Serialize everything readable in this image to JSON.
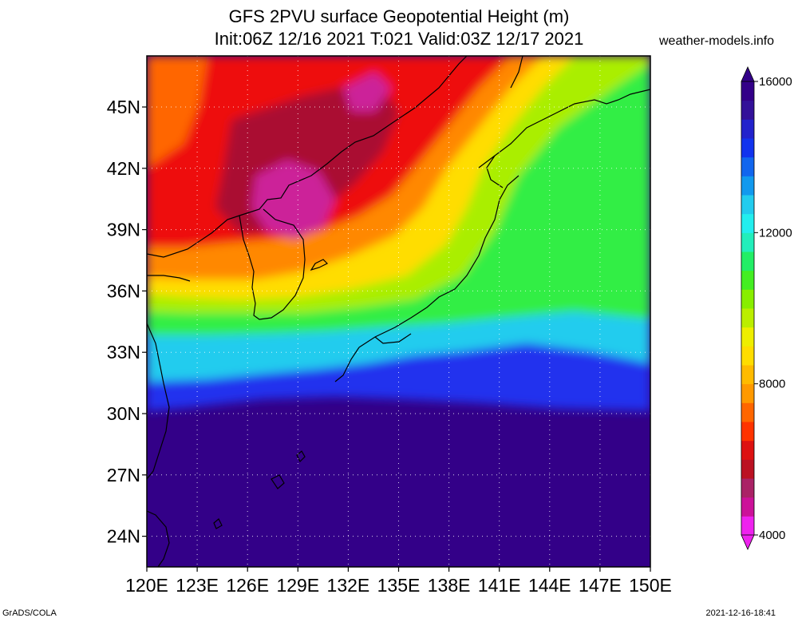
{
  "title": {
    "line1": "GFS 2PVU surface Geopotential Height (m)",
    "line2": "Init:06Z 12/16 2021 T:021 Valid:03Z 12/17 2021"
  },
  "site": "weather-models.info",
  "footer": {
    "left": "GrADS/COLA",
    "right": "2021-12-16-18:41"
  },
  "map": {
    "lon_range": [
      120,
      150
    ],
    "lat_range": [
      22.5,
      47.5
    ],
    "x_ticks": [
      {
        "value": 120,
        "label": "120E"
      },
      {
        "value": 123,
        "label": "123E"
      },
      {
        "value": 126,
        "label": "126E"
      },
      {
        "value": 129,
        "label": "129E"
      },
      {
        "value": 132,
        "label": "132E"
      },
      {
        "value": 135,
        "label": "135E"
      },
      {
        "value": 138,
        "label": "138E"
      },
      {
        "value": 141,
        "label": "141E"
      },
      {
        "value": 144,
        "label": "144E"
      },
      {
        "value": 147,
        "label": "147E"
      },
      {
        "value": 150,
        "label": "150E"
      }
    ],
    "y_ticks": [
      {
        "value": 24,
        "label": "24N"
      },
      {
        "value": 27,
        "label": "27N"
      },
      {
        "value": 30,
        "label": "30N"
      },
      {
        "value": 33,
        "label": "33N"
      },
      {
        "value": 36,
        "label": "36N"
      },
      {
        "value": 39,
        "label": "39N"
      },
      {
        "value": 42,
        "label": "42N"
      },
      {
        "value": 45,
        "label": "45N"
      }
    ],
    "grid": "dotted"
  },
  "colorbar": {
    "labels": [
      {
        "value": 4000,
        "label": "4000"
      },
      {
        "value": 8000,
        "label": "8000"
      },
      {
        "value": 12000,
        "label": "12000"
      },
      {
        "value": 16000,
        "label": "16000"
      }
    ],
    "colors": [
      "#ee22ee",
      "#cc1199",
      "#aa2266",
      "#bb1122",
      "#dd1111",
      "#ff3300",
      "#ff6600",
      "#ff9900",
      "#ffbb00",
      "#ffdd00",
      "#eeee00",
      "#bbee00",
      "#88ee00",
      "#44ee22",
      "#22ee66",
      "#22eebb",
      "#22eeee",
      "#22ccee",
      "#1199ee",
      "#1166ee",
      "#1133ee",
      "#2222cc",
      "#331199",
      "#330088"
    ],
    "under_color": "#ee22ee",
    "over_color": "#330088"
  }
}
